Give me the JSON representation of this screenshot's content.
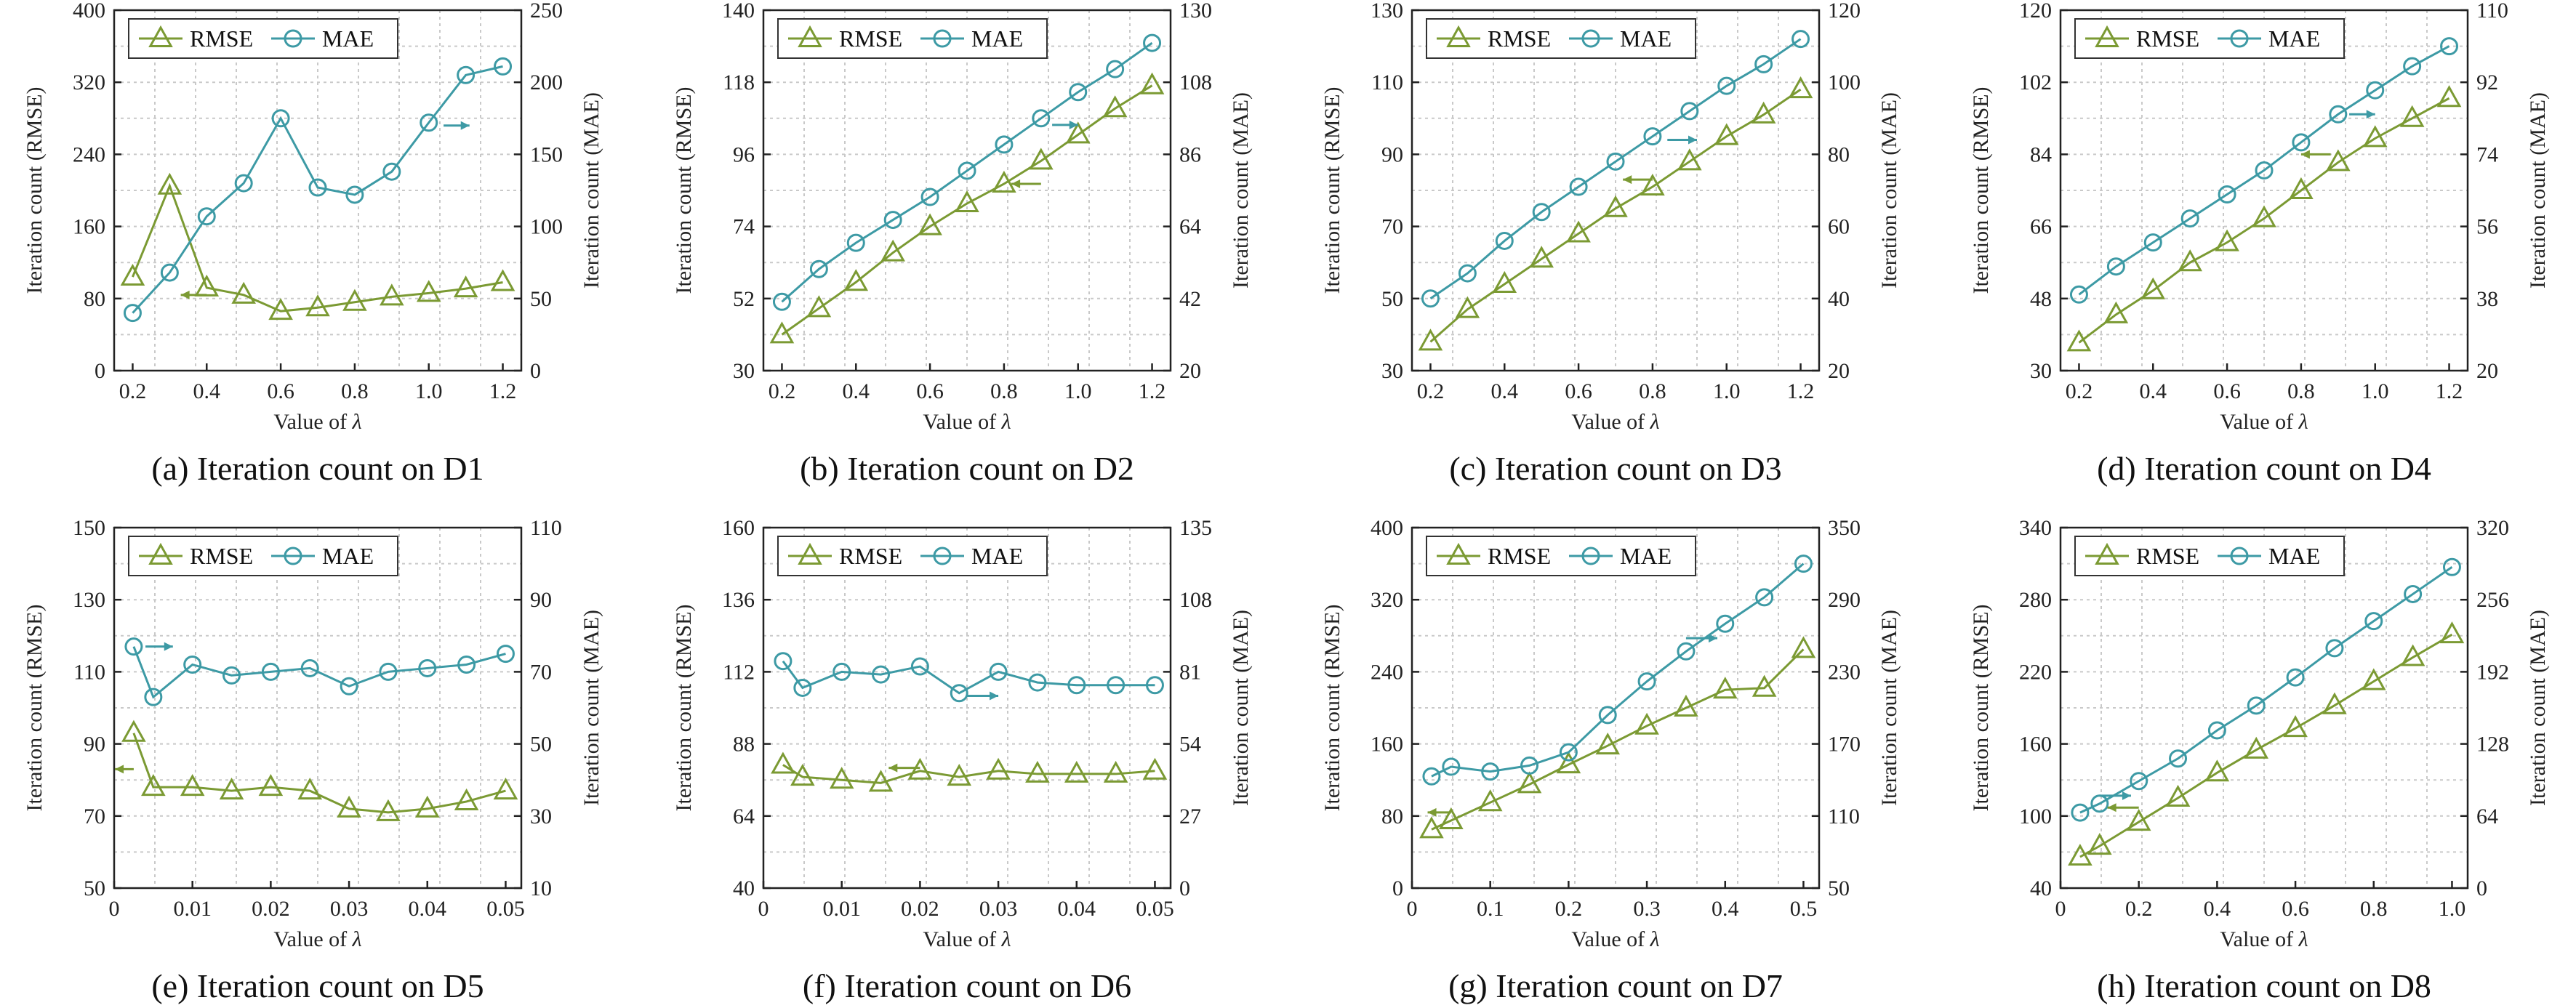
{
  "colors": {
    "rmse": "#7b9a33",
    "mae": "#3d9aa5"
  },
  "chart_data": [
    {
      "type": "line",
      "caption": "(a) Iteration count on D1",
      "xlabel_prefix": "Value of ",
      "xlabel_symbol": "λ",
      "ylabel_left": "Iteration count (RMSE)",
      "ylabel_right": "Iteration count (MAE)",
      "x": [
        0.2,
        0.3,
        0.4,
        0.5,
        0.6,
        0.7,
        0.8,
        0.9,
        1.0,
        1.1,
        1.2
      ],
      "xlim": [
        0.15,
        1.25
      ],
      "xticks": [
        "0.2",
        "0.4",
        "0.6",
        "0.8",
        "1.0",
        "1.2"
      ],
      "ylim_left": [
        0,
        400
      ],
      "yticks_left": [
        "0",
        "80",
        "160",
        "240",
        "320",
        "400"
      ],
      "ylim_right": [
        0,
        250
      ],
      "yticks_right": [
        "0",
        "50",
        "100",
        "150",
        "200",
        "250"
      ],
      "series": [
        {
          "name": "RMSE",
          "axis": "left",
          "marker": "triangle",
          "values": [
            104,
            205,
            92,
            84,
            66,
            70,
            76,
            82,
            86,
            91,
            98
          ]
        },
        {
          "name": "MAE",
          "axis": "right",
          "marker": "circle",
          "values": [
            40,
            68,
            107,
            130,
            175,
            127,
            122,
            138,
            172,
            205,
            211
          ]
        }
      ],
      "arrows": [
        {
          "axis": "left",
          "x1": 0.4,
          "y1": 84,
          "x2": 0.33,
          "y2": 84
        },
        {
          "axis": "right",
          "x1": 1.04,
          "y1": 170,
          "x2": 1.11,
          "y2": 170
        }
      ]
    },
    {
      "type": "line",
      "caption": "(b) Iteration count on D2",
      "xlabel_prefix": "Value of ",
      "xlabel_symbol": "λ",
      "ylabel_left": "Iteration count (RMSE)",
      "ylabel_right": "Iteration count (MAE)",
      "x": [
        0.2,
        0.3,
        0.4,
        0.5,
        0.6,
        0.7,
        0.8,
        0.9,
        1.0,
        1.1,
        1.2
      ],
      "xlim": [
        0.15,
        1.25
      ],
      "xticks": [
        "0.2",
        "0.4",
        "0.6",
        "0.8",
        "1.0",
        "1.2"
      ],
      "ylim_left": [
        30,
        140
      ],
      "yticks_left": [
        "30",
        "52",
        "74",
        "96",
        "118",
        "140"
      ],
      "ylim_right": [
        20,
        130
      ],
      "yticks_right": [
        "20",
        "42",
        "64",
        "86",
        "108",
        "130"
      ],
      "series": [
        {
          "name": "RMSE",
          "axis": "left",
          "marker": "triangle",
          "values": [
            41,
            49,
            57,
            66,
            74,
            81,
            87,
            94,
            102,
            110,
            117
          ]
        },
        {
          "name": "MAE",
          "axis": "right",
          "marker": "circle",
          "values": [
            41,
            51,
            59,
            66,
            73,
            81,
            89,
            97,
            105,
            112,
            120
          ]
        }
      ],
      "arrows": [
        {
          "axis": "left",
          "x1": 0.9,
          "y1": 87,
          "x2": 0.82,
          "y2": 87
        },
        {
          "axis": "right",
          "x1": 0.93,
          "y1": 95,
          "x2": 1.0,
          "y2": 95
        }
      ]
    },
    {
      "type": "line",
      "caption": "(c) Iteration count on D3",
      "xlabel_prefix": "Value of ",
      "xlabel_symbol": "λ",
      "ylabel_left": "Iteration count (RMSE)",
      "ylabel_right": "Iteration count (MAE)",
      "x": [
        0.2,
        0.3,
        0.4,
        0.5,
        0.6,
        0.7,
        0.8,
        0.9,
        1.0,
        1.1,
        1.2
      ],
      "xlim": [
        0.15,
        1.25
      ],
      "xticks": [
        "0.2",
        "0.4",
        "0.6",
        "0.8",
        "1.0",
        "1.2"
      ],
      "ylim_left": [
        30,
        130
      ],
      "yticks_left": [
        "30",
        "50",
        "70",
        "90",
        "110",
        "130"
      ],
      "ylim_right": [
        20,
        120
      ],
      "yticks_right": [
        "20",
        "40",
        "60",
        "80",
        "100",
        "120"
      ],
      "series": [
        {
          "name": "RMSE",
          "axis": "left",
          "marker": "triangle",
          "values": [
            38,
            47,
            54,
            61,
            68,
            75,
            81,
            88,
            95,
            101,
            108
          ]
        },
        {
          "name": "MAE",
          "axis": "right",
          "marker": "circle",
          "values": [
            40,
            47,
            56,
            64,
            71,
            78,
            85,
            92,
            99,
            105,
            112
          ]
        }
      ],
      "arrows": [
        {
          "axis": "left",
          "x1": 0.8,
          "y1": 83,
          "x2": 0.72,
          "y2": 83
        },
        {
          "axis": "right",
          "x1": 0.84,
          "y1": 84,
          "x2": 0.92,
          "y2": 84
        }
      ]
    },
    {
      "type": "line",
      "caption": "(d) Iteration count on D4",
      "xlabel_prefix": "Value of ",
      "xlabel_symbol": "λ",
      "ylabel_left": "Iteration count (RMSE)",
      "ylabel_right": "Iteration count (MAE)",
      "x": [
        0.2,
        0.3,
        0.4,
        0.5,
        0.6,
        0.7,
        0.8,
        0.9,
        1.0,
        1.1,
        1.2
      ],
      "xlim": [
        0.15,
        1.25
      ],
      "xticks": [
        "0.2",
        "0.4",
        "0.6",
        "0.8",
        "1.0",
        "1.2"
      ],
      "ylim_left": [
        30,
        120
      ],
      "yticks_left": [
        "30",
        "48",
        "66",
        "84",
        "102",
        "120"
      ],
      "ylim_right": [
        20,
        110
      ],
      "yticks_right": [
        "20",
        "38",
        "56",
        "74",
        "92",
        "110"
      ],
      "series": [
        {
          "name": "RMSE",
          "axis": "left",
          "marker": "triangle",
          "values": [
            37,
            44,
            50,
            57,
            62,
            68,
            75,
            82,
            88,
            93,
            98
          ]
        },
        {
          "name": "MAE",
          "axis": "right",
          "marker": "circle",
          "values": [
            39,
            46,
            52,
            58,
            64,
            70,
            77,
            84,
            90,
            96,
            101
          ]
        }
      ],
      "arrows": [
        {
          "axis": "left",
          "x1": 0.88,
          "y1": 84,
          "x2": 0.8,
          "y2": 84
        },
        {
          "axis": "right",
          "x1": 0.93,
          "y1": 84,
          "x2": 1.0,
          "y2": 84
        }
      ]
    },
    {
      "type": "line",
      "caption": "(e) Iteration count on D5",
      "xlabel_prefix": "Value of ",
      "xlabel_symbol": "λ",
      "ylabel_left": "Iteration count (RMSE)",
      "ylabel_right": "Iteration count (MAE)",
      "x": [
        0.0025,
        0.005,
        0.01,
        0.015,
        0.02,
        0.025,
        0.03,
        0.035,
        0.04,
        0.045,
        0.05
      ],
      "xlim": [
        0,
        0.052
      ],
      "xticks": [
        "0",
        "0.01",
        "0.02",
        "0.03",
        "0.04",
        "0.05"
      ],
      "ylim_left": [
        50,
        150
      ],
      "yticks_left": [
        "50",
        "70",
        "90",
        "110",
        "130",
        "150"
      ],
      "ylim_right": [
        10,
        110
      ],
      "yticks_right": [
        "10",
        "30",
        "50",
        "70",
        "90",
        "110"
      ],
      "series": [
        {
          "name": "RMSE",
          "axis": "left",
          "marker": "triangle",
          "values": [
            93,
            78,
            78,
            77,
            78,
            77,
            72,
            71,
            72,
            74,
            77
          ]
        },
        {
          "name": "MAE",
          "axis": "right",
          "marker": "circle",
          "values": [
            77,
            63,
            72,
            69,
            70,
            71,
            66,
            70,
            71,
            72,
            75
          ]
        }
      ],
      "arrows": [
        {
          "axis": "left",
          "x1": 0.0025,
          "y1": 83,
          "x2": 0.0001,
          "y2": 83
        },
        {
          "axis": "right",
          "x1": 0.004,
          "y1": 77,
          "x2": 0.0075,
          "y2": 77
        }
      ]
    },
    {
      "type": "line",
      "caption": "(f) Iteration count on D6",
      "xlabel_prefix": "Value of ",
      "xlabel_symbol": "λ",
      "ylabel_left": "Iteration count (RMSE)",
      "ylabel_right": "Iteration count (MAE)",
      "x": [
        0.0025,
        0.005,
        0.01,
        0.015,
        0.02,
        0.025,
        0.03,
        0.035,
        0.04,
        0.045,
        0.05
      ],
      "xlim": [
        0,
        0.052
      ],
      "xticks": [
        "0",
        "0.01",
        "0.02",
        "0.03",
        "0.04",
        "0.05"
      ],
      "ylim_left": [
        40,
        160
      ],
      "yticks_left": [
        "40",
        "64",
        "88",
        "112",
        "136",
        "160"
      ],
      "ylim_right": [
        0,
        135
      ],
      "yticks_right": [
        "0",
        "27",
        "54",
        "81",
        "108",
        "135"
      ],
      "series": [
        {
          "name": "RMSE",
          "axis": "left",
          "marker": "triangle",
          "values": [
            81,
            77,
            76,
            75,
            79,
            77,
            79,
            78,
            78,
            78,
            79
          ]
        },
        {
          "name": "MAE",
          "axis": "right",
          "marker": "circle",
          "values": [
            85,
            75,
            81,
            80,
            83,
            73,
            81,
            77,
            76,
            76,
            76
          ]
        }
      ],
      "arrows": [
        {
          "axis": "left",
          "x1": 0.02,
          "y1": 80,
          "x2": 0.016,
          "y2": 80
        },
        {
          "axis": "right",
          "x1": 0.026,
          "y1": 72,
          "x2": 0.03,
          "y2": 72
        }
      ]
    },
    {
      "type": "line",
      "caption": "(g) Iteration count on D7",
      "xlabel_prefix": "Value of ",
      "xlabel_symbol": "λ",
      "ylabel_left": "Iteration count (RMSE)",
      "ylabel_right": "Iteration count (MAE)",
      "x": [
        0.025,
        0.05,
        0.1,
        0.15,
        0.2,
        0.25,
        0.3,
        0.35,
        0.4,
        0.45,
        0.5
      ],
      "xlim": [
        0,
        0.52
      ],
      "xticks": [
        "0",
        "0.1",
        "0.2",
        "0.3",
        "0.4",
        "0.5"
      ],
      "ylim_left": [
        0,
        400
      ],
      "yticks_left": [
        "0",
        "80",
        "160",
        "240",
        "320",
        "400"
      ],
      "ylim_right": [
        50,
        350
      ],
      "yticks_right": [
        "50",
        "110",
        "170",
        "230",
        "290",
        "350"
      ],
      "series": [
        {
          "name": "RMSE",
          "axis": "left",
          "marker": "triangle",
          "values": [
            65,
            75,
            95,
            115,
            137,
            158,
            180,
            200,
            220,
            222,
            265
          ]
        },
        {
          "name": "MAE",
          "axis": "right",
          "marker": "circle",
          "values": [
            143,
            151,
            147,
            152,
            163,
            194,
            222,
            247,
            270,
            292,
            320
          ]
        }
      ],
      "arrows": [
        {
          "axis": "left",
          "x1": 0.05,
          "y1": 84,
          "x2": 0.02,
          "y2": 84
        },
        {
          "axis": "right",
          "x1": 0.35,
          "y1": 258,
          "x2": 0.39,
          "y2": 258
        }
      ]
    },
    {
      "type": "line",
      "caption": "(h) Iteration count on D8",
      "xlabel_prefix": "Value of ",
      "xlabel_symbol": "λ",
      "ylabel_left": "Iteration count (RMSE)",
      "ylabel_right": "Iteration count (MAE)",
      "x": [
        0.05,
        0.1,
        0.2,
        0.3,
        0.4,
        0.5,
        0.6,
        0.7,
        0.8,
        0.9,
        1.0
      ],
      "xlim": [
        0,
        1.04
      ],
      "xticks": [
        "0",
        "0.2",
        "0.4",
        "0.6",
        "0.8",
        "1.0"
      ],
      "ylim_left": [
        40,
        340
      ],
      "yticks_left": [
        "40",
        "100",
        "160",
        "220",
        "280",
        "340"
      ],
      "ylim_right": [
        0,
        320
      ],
      "yticks_right": [
        "0",
        "64",
        "128",
        "192",
        "256",
        "320"
      ],
      "series": [
        {
          "name": "RMSE",
          "axis": "left",
          "marker": "triangle",
          "values": [
            66,
            75,
            95,
            115,
            136,
            155,
            173,
            192,
            212,
            232,
            251
          ]
        },
        {
          "name": "MAE",
          "axis": "right",
          "marker": "circle",
          "values": [
            67,
            75,
            95,
            115,
            140,
            162,
            187,
            213,
            237,
            261,
            285
          ]
        }
      ],
      "arrows": [
        {
          "axis": "left",
          "x1": 0.2,
          "y1": 107,
          "x2": 0.12,
          "y2": 107
        },
        {
          "axis": "right",
          "x1": 0.1,
          "y1": 82,
          "x2": 0.18,
          "y2": 82
        }
      ]
    }
  ]
}
